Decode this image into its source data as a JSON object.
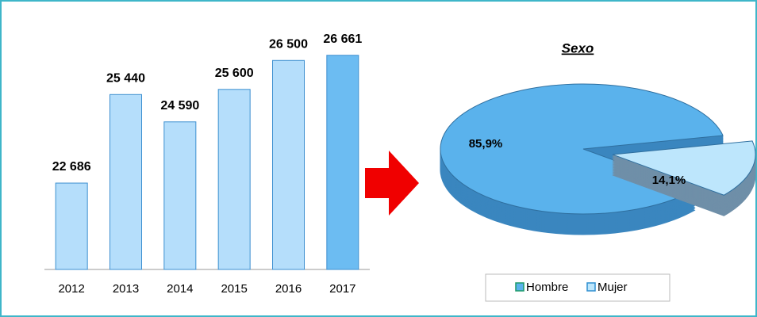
{
  "chart_data": [
    {
      "type": "bar",
      "categories": [
        "2012",
        "2013",
        "2014",
        "2015",
        "2016",
        "2017"
      ],
      "values": [
        22686,
        25440,
        24590,
        25600,
        26500,
        26661
      ],
      "value_labels": [
        "22 686",
        "25 440",
        "24 590",
        "25 600",
        "26 500",
        "26 661"
      ],
      "colors": [
        "#b5defb",
        "#b5defb",
        "#b5defb",
        "#b5defb",
        "#b5defb",
        "#6cbcf2"
      ],
      "ylim": [
        20000,
        27000
      ]
    },
    {
      "type": "pie",
      "title": "Sexo",
      "categories": [
        "Hombre",
        "Mujer"
      ],
      "values": [
        85.9,
        14.1
      ],
      "value_labels": [
        "85,9%",
        "14,1%"
      ],
      "colors": [
        "#5ab2ec",
        "#bde6fc"
      ],
      "legend": "bottom"
    }
  ]
}
